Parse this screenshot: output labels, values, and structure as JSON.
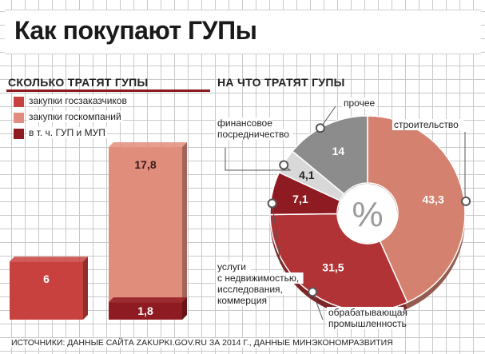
{
  "title": "Как покупают ГУПы",
  "left_section": {
    "heading": "СКОЛЬКО ТРАТЯТ ГУПЫ",
    "legend": [
      {
        "label": "закупки госзаказчиков",
        "color": "#c8413f"
      },
      {
        "label": "закупки госкомпаний",
        "color": "#e08d7c"
      },
      {
        "label": "в т. ч. ГУП и МУП",
        "color": "#8f1b22"
      }
    ]
  },
  "right_section": {
    "heading": "НА ЧТО ТРАТЯТ ГУПЫ",
    "center_label": "%"
  },
  "source": "ИСТОЧНИКИ: ДАННЫЕ САЙТА ZAKUPKI.GOV.RU ЗА 2014 Г., ДАННЫЕ МИНЭКОНОМРАЗВИТИЯ",
  "chart_data": [
    {
      "type": "bar",
      "categories": [
        "закупки госзаказчиков",
        "закупки госкомпаний"
      ],
      "series": [
        {
          "name": "закупки госзаказчиков",
          "values": [
            6,
            null
          ],
          "labels": [
            "6",
            ""
          ]
        },
        {
          "name": "закупки госкомпаний",
          "values": [
            null,
            17.8
          ],
          "labels": [
            "",
            "17,8"
          ]
        },
        {
          "name": "в т. ч. ГУП и МУП",
          "values": [
            null,
            1.8
          ],
          "labels": [
            "",
            "1,8"
          ]
        }
      ],
      "ylim": [
        0,
        17.8
      ]
    },
    {
      "type": "pie",
      "donut": true,
      "slices": [
        {
          "name": "строительство",
          "value": 43.3,
          "label": "43,3",
          "color": "#d4826f"
        },
        {
          "name": "обрабатывающая промышленность",
          "value": 31.5,
          "label": "31,5",
          "color": "#b23336"
        },
        {
          "name": "услуги с недвижимостью, исследования, коммерция",
          "value": 7.1,
          "label": "7,1",
          "color": "#8f1b22"
        },
        {
          "name": "финансовое посредничество",
          "value": 4.1,
          "label": "4,1",
          "color": "#d8d8d8"
        },
        {
          "name": "прочее",
          "value": 14,
          "label": "14",
          "color": "#8c8c8c"
        }
      ]
    }
  ]
}
